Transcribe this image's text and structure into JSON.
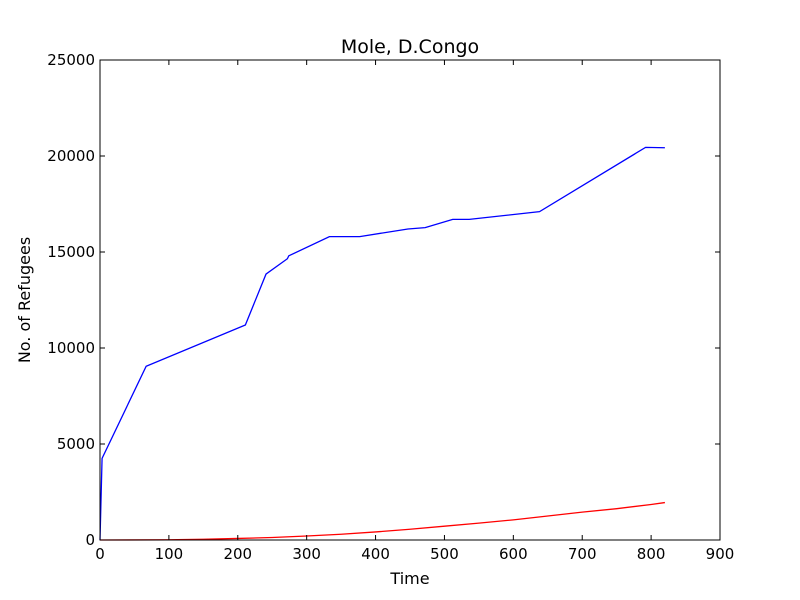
{
  "chart_data": {
    "type": "line",
    "title": "Mole, D.Congo",
    "xlabel": "Time",
    "ylabel": "No. of Refugees",
    "xlim": [
      0,
      900
    ],
    "ylim": [
      0,
      25000
    ],
    "xticks": [
      0,
      100,
      200,
      300,
      400,
      500,
      600,
      700,
      800,
      900
    ],
    "yticks": [
      0,
      5000,
      10000,
      15000,
      20000,
      25000
    ],
    "grid": false,
    "legend": "none",
    "series": [
      {
        "color": "#0000ff",
        "x": [
          0,
          3,
          67,
          211,
          241,
          272,
          274,
          333,
          377,
          447,
          472,
          512,
          536,
          638,
          792,
          820
        ],
        "y": [
          0,
          4250,
          9050,
          11200,
          13850,
          14650,
          14800,
          15800,
          15800,
          16200,
          16270,
          16700,
          16700,
          17100,
          20450,
          20430
        ]
      },
      {
        "color": "#ff0000",
        "x": [
          0,
          100,
          150,
          200,
          250,
          300,
          350,
          400,
          450,
          500,
          550,
          600,
          650,
          700,
          750,
          800,
          820
        ],
        "y": [
          0,
          10,
          40,
          80,
          130,
          210,
          300,
          420,
          560,
          720,
          880,
          1050,
          1250,
          1450,
          1630,
          1850,
          1950
        ]
      }
    ]
  }
}
